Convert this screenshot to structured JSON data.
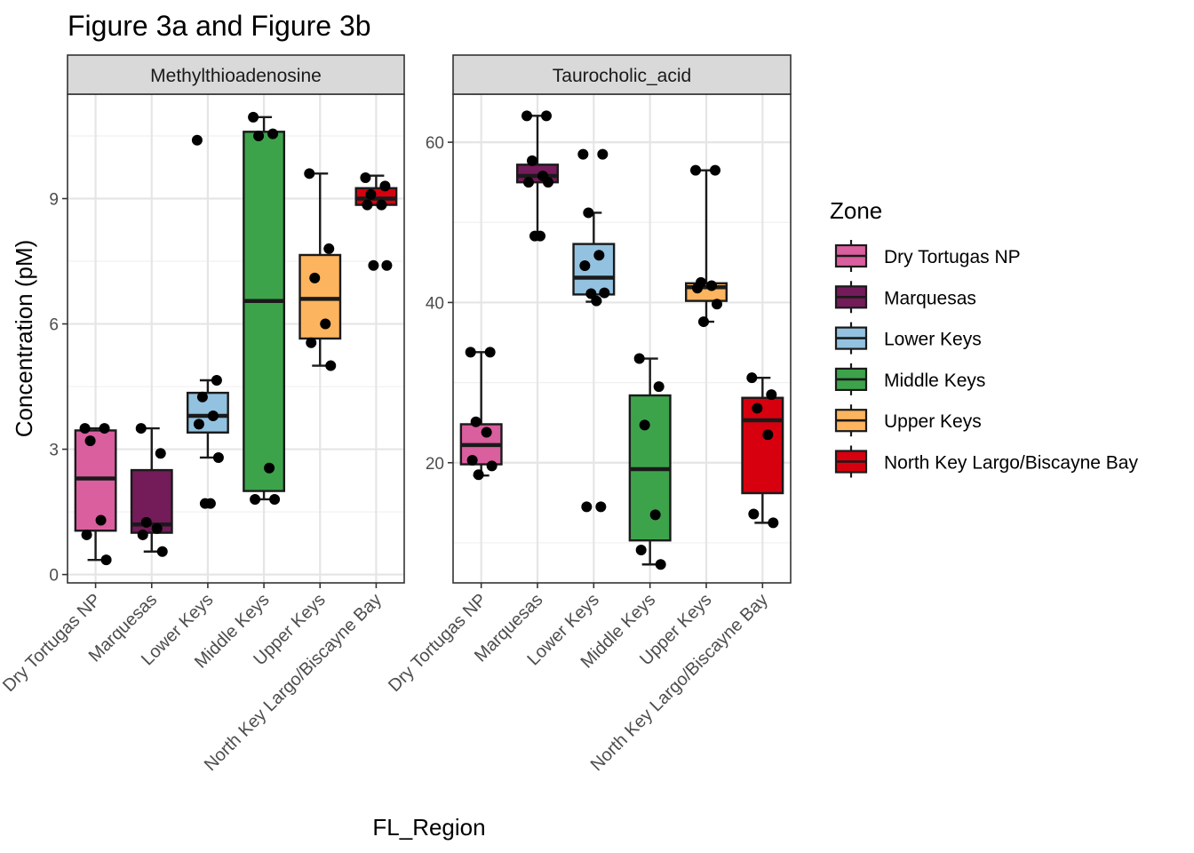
{
  "title": "Figure 3a and Figure 3b",
  "chart_data": {
    "type": "box",
    "xlabel": "FL_Region",
    "ylabel": "Concentration (pM)",
    "categories": [
      "Dry Tortugas NP",
      "Marquesas",
      "Lower Keys",
      "Middle Keys",
      "Upper Keys",
      "North Key Largo/Biscayne Bay"
    ],
    "grid": true,
    "legend": {
      "title": "Zone",
      "placement": "right",
      "entries": [
        {
          "label": "Dry Tortugas NP",
          "color": "#D95F9E"
        },
        {
          "label": "Marquesas",
          "color": "#741B5A"
        },
        {
          "label": "Lower Keys",
          "color": "#92C2DF"
        },
        {
          "label": "Middle Keys",
          "color": "#3DA34B"
        },
        {
          "label": "Upper Keys",
          "color": "#FDB45F"
        },
        {
          "label": "North Key Largo/Biscayne Bay",
          "color": "#D7000F"
        }
      ]
    },
    "panels": [
      {
        "strip": "Methylthioadenosine",
        "ylim": [
          -0.2,
          11.5
        ],
        "yticks": [
          0,
          3,
          6,
          9
        ],
        "ytick_labels": [
          "0",
          "3",
          "6",
          "9"
        ],
        "boxes": [
          {
            "q1": 1.05,
            "median": 2.3,
            "q3": 3.45,
            "wlo": 0.35,
            "whi": 3.5,
            "points": [
              3.5,
              3.5,
              3.2,
              1.3,
              0.95,
              0.35
            ]
          },
          {
            "q1": 1.0,
            "median": 1.2,
            "q3": 2.5,
            "wlo": 0.55,
            "whi": 3.5,
            "points": [
              3.5,
              2.9,
              1.25,
              1.1,
              0.95,
              0.55
            ]
          },
          {
            "q1": 3.4,
            "median": 3.8,
            "q3": 4.35,
            "wlo": 2.8,
            "whi": 4.65,
            "points": [
              10.4,
              4.65,
              4.25,
              3.8,
              3.6,
              2.8,
              1.7,
              1.7
            ]
          },
          {
            "q1": 2.0,
            "median": 6.55,
            "q3": 10.6,
            "wlo": 1.8,
            "whi": 10.95,
            "points": [
              10.95,
              10.55,
              10.5,
              2.55,
              1.8,
              1.8
            ]
          },
          {
            "q1": 5.65,
            "median": 6.6,
            "q3": 7.65,
            "wlo": 5.0,
            "whi": 9.6,
            "points": [
              9.6,
              7.8,
              7.1,
              6.0,
              5.55,
              5.0
            ]
          },
          {
            "q1": 8.85,
            "median": 9.0,
            "q3": 9.25,
            "wlo": 8.85,
            "whi": 9.55,
            "points": [
              9.5,
              9.3,
              9.1,
              8.85,
              8.85,
              7.4,
              7.4
            ]
          }
        ]
      },
      {
        "strip": "Taurocholic_acid",
        "ylim": [
          5,
          66
        ],
        "yticks": [
          20,
          40,
          60
        ],
        "ytick_labels": [
          "20",
          "40",
          "60"
        ],
        "boxes": [
          {
            "q1": 19.8,
            "median": 22.2,
            "q3": 24.8,
            "wlo": 18.4,
            "whi": 33.8,
            "points": [
              33.8,
              33.8,
              25.1,
              23.8,
              20.3,
              19.6,
              18.5
            ]
          },
          {
            "q1": 55.0,
            "median": 55.8,
            "q3": 57.2,
            "wlo": 48.3,
            "whi": 63.3,
            "points": [
              63.3,
              63.3,
              57.7,
              55.8,
              55.0,
              55.0,
              48.3,
              48.3
            ]
          },
          {
            "q1": 41.0,
            "median": 43.1,
            "q3": 47.3,
            "wlo": 40.1,
            "whi": 51.2,
            "points": [
              58.5,
              58.5,
              51.2,
              45.9,
              44.6,
              41.2,
              41.1,
              40.2,
              14.5,
              14.5
            ]
          },
          {
            "q1": 10.3,
            "median": 19.2,
            "q3": 28.4,
            "wlo": 7.3,
            "whi": 33.0,
            "points": [
              33.0,
              29.5,
              24.7,
              13.5,
              9.1,
              7.3
            ]
          },
          {
            "q1": 40.2,
            "median": 41.9,
            "q3": 42.4,
            "wlo": 37.6,
            "whi": 56.5,
            "points": [
              56.5,
              56.5,
              42.5,
              42.1,
              41.8,
              39.8,
              37.6
            ]
          },
          {
            "q1": 16.2,
            "median": 25.3,
            "q3": 28.1,
            "wlo": 12.5,
            "whi": 30.6,
            "points": [
              30.6,
              28.5,
              26.8,
              23.5,
              13.6,
              12.5
            ]
          }
        ]
      }
    ]
  }
}
